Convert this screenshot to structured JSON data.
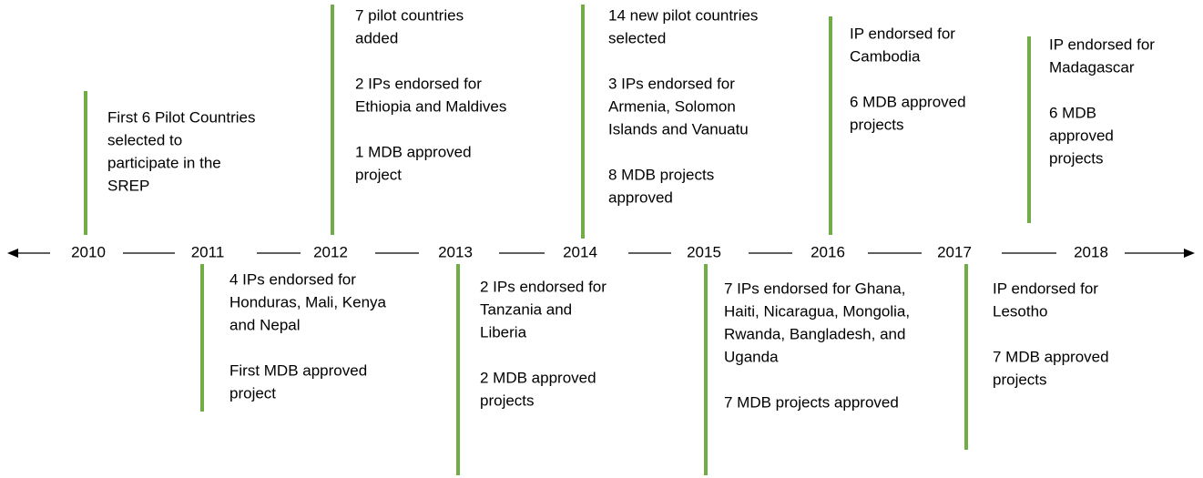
{
  "timeline": {
    "events": [
      {
        "year": "2010",
        "paragraphs": [
          [
            "First 6 Pilot Countries",
            "selected to",
            "participate in the",
            "SREP"
          ]
        ]
      },
      {
        "year": "2011",
        "paragraphs": [
          [
            "4 IPs endorsed for",
            "Honduras, Mali, Kenya",
            "and Nepal"
          ],
          [
            "First MDB approved",
            "project"
          ]
        ]
      },
      {
        "year": "2012",
        "paragraphs": [
          [
            "7 pilot countries",
            "added"
          ],
          [
            "2 IPs endorsed for",
            "Ethiopia and Maldives"
          ],
          [
            "1 MDB approved",
            "project"
          ]
        ]
      },
      {
        "year": "2013",
        "paragraphs": [
          [
            "2 IPs endorsed for",
            "Tanzania and",
            "Liberia"
          ],
          [
            "2 MDB approved",
            "projects"
          ]
        ]
      },
      {
        "year": "2014",
        "paragraphs": [
          [
            "14 new pilot countries",
            "selected"
          ],
          [
            "3 IPs endorsed for",
            "Armenia, Solomon",
            "Islands and Vanuatu"
          ],
          [
            "8 MDB projects",
            "approved"
          ]
        ]
      },
      {
        "year": "2015",
        "paragraphs": [
          [
            "7 IPs endorsed for Ghana,",
            "Haiti, Nicaragua, Mongolia,",
            "Rwanda, Bangladesh, and",
            "Uganda"
          ],
          [
            "7 MDB projects approved"
          ]
        ]
      },
      {
        "year": "2016",
        "paragraphs": [
          [
            "IP endorsed for",
            "Cambodia"
          ],
          [
            "6 MDB approved",
            "projects"
          ]
        ]
      },
      {
        "year": "2017",
        "paragraphs": [
          [
            "IP endorsed for",
            "Lesotho"
          ],
          [
            "7 MDB approved",
            "projects"
          ]
        ]
      },
      {
        "year": "2018",
        "paragraphs": [
          [
            "IP endorsed for",
            "Madagascar"
          ],
          [
            "6 MDB",
            "approved",
            "projects"
          ]
        ]
      }
    ]
  }
}
